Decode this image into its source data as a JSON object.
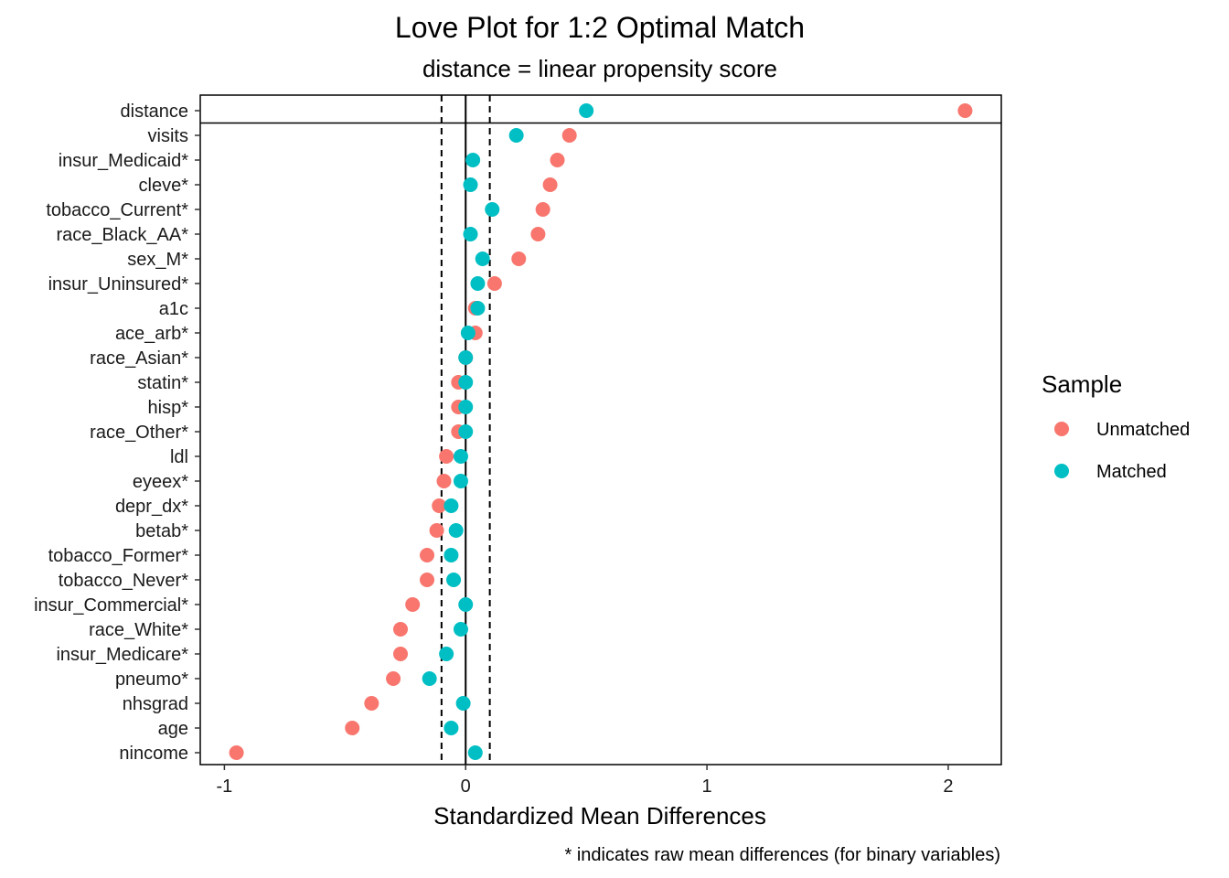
{
  "chart_data": {
    "type": "scatter",
    "title": "Love Plot for 1:2 Optimal Match",
    "subtitle": "distance = linear propensity score",
    "xlabel": "Standardized Mean Differences",
    "caption": "* indicates raw mean differences (for binary variables)",
    "xlim": [
      -1.1,
      2.22
    ],
    "xticks": [
      -1,
      0,
      1,
      2
    ],
    "threshold_lines": [
      -0.1,
      0,
      0.1
    ],
    "grid": false,
    "legend": {
      "title": "Sample",
      "position": "right"
    },
    "categories": [
      "distance",
      "visits",
      "insur_Medicaid*",
      "cleve*",
      "tobacco_Current*",
      "race_Black_AA*",
      "sex_M*",
      "insur_Uninsured*",
      "a1c",
      "ace_arb*",
      "race_Asian*",
      "statin*",
      "hisp*",
      "race_Other*",
      "ldl",
      "eyeex*",
      "depr_dx*",
      "betab*",
      "tobacco_Former*",
      "tobacco_Never*",
      "insur_Commercial*",
      "race_White*",
      "insur_Medicare*",
      "pneumo*",
      "nhsgrad",
      "age",
      "nincome"
    ],
    "series": [
      {
        "name": "Unmatched",
        "color": "#F8766D",
        "values": [
          2.07,
          0.43,
          0.38,
          0.35,
          0.32,
          0.3,
          0.22,
          0.12,
          0.04,
          0.04,
          0.0,
          -0.03,
          -0.03,
          -0.03,
          -0.08,
          -0.09,
          -0.11,
          -0.12,
          -0.16,
          -0.16,
          -0.22,
          -0.27,
          -0.27,
          -0.3,
          -0.39,
          -0.47,
          -0.95
        ]
      },
      {
        "name": "Matched",
        "color": "#00BFC4",
        "values": [
          0.5,
          0.21,
          0.03,
          0.02,
          0.11,
          0.02,
          0.07,
          0.05,
          0.05,
          0.01,
          0.0,
          0.0,
          0.0,
          0.0,
          -0.02,
          -0.02,
          -0.06,
          -0.04,
          -0.06,
          -0.05,
          0.0,
          -0.02,
          -0.08,
          -0.15,
          -0.01,
          -0.06,
          0.04
        ]
      }
    ]
  }
}
